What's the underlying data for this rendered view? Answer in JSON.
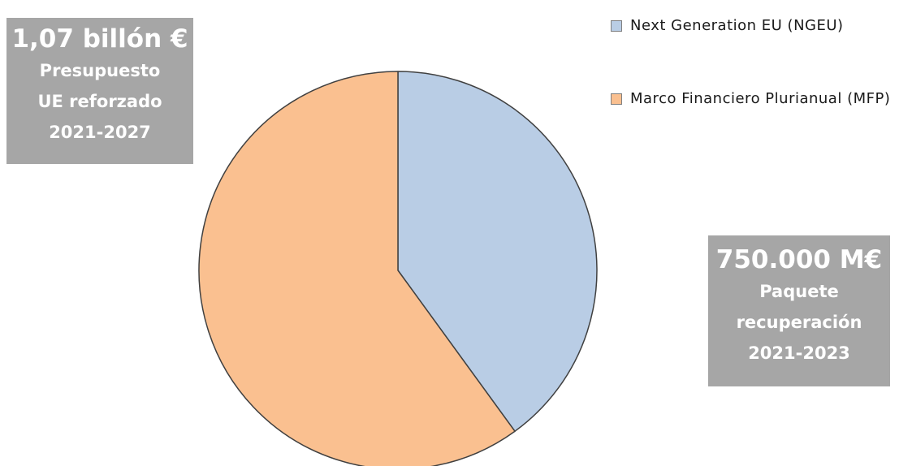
{
  "callouts": {
    "left": {
      "amount": "1,07 billón €",
      "lines": [
        "Presupuesto",
        "UE reforzado",
        "2021-2027"
      ]
    },
    "right": {
      "amount": "750.000 M€",
      "lines": [
        "Paquete",
        "recuperación",
        "2021-2023"
      ]
    }
  },
  "chart_data": {
    "type": "pie",
    "slices": [
      {
        "label": "Next Generation EU (NGEU)",
        "share": 0.4,
        "color": "#b9cde5"
      },
      {
        "label": "Marco Financiero Plurianual (MFP)",
        "share": 0.6,
        "color": "#fac090"
      }
    ],
    "start_angle": "top (12 o'clock), clockwise",
    "legend_position": "top-right",
    "slice_border_color": "#404040"
  }
}
